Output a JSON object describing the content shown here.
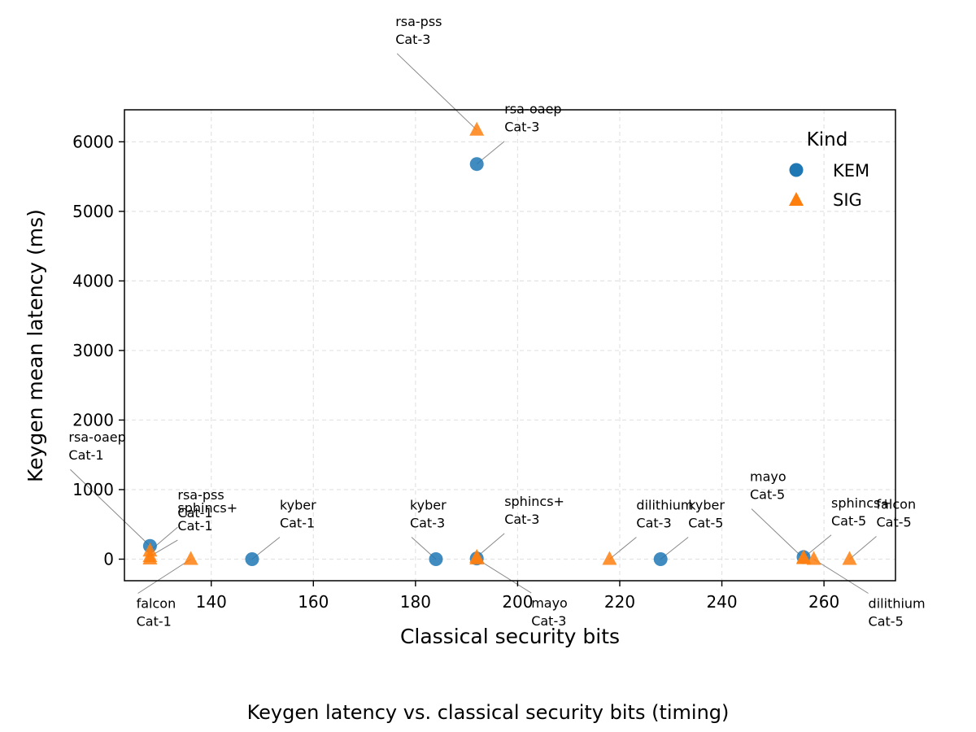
{
  "caption": "Keygen latency vs. classical security bits (timing)",
  "chart_data": {
    "type": "scatter",
    "title": "",
    "xlabel": "Classical security bits",
    "ylabel": "Keygen mean latency (ms)",
    "xlim": [
      123,
      274
    ],
    "ylim": [
      -310,
      6460
    ],
    "xticks": [
      140,
      160,
      180,
      200,
      220,
      240,
      260
    ],
    "yticks": [
      0,
      1000,
      2000,
      3000,
      4000,
      5000,
      6000
    ],
    "grid": true,
    "legend": {
      "title": "Kind",
      "placement": "top-right"
    },
    "series": [
      {
        "name": "KEM",
        "marker": "circle",
        "color": "#1f77b4",
        "points": [
          {
            "x": 128,
            "y": 190,
            "label": [
              "rsa-oaep",
              "Cat-1"
            ]
          },
          {
            "x": 148,
            "y": 0,
            "label": [
              "kyber",
              "Cat-1"
            ]
          },
          {
            "x": 184,
            "y": 0,
            "label": [
              "kyber",
              "Cat-3"
            ]
          },
          {
            "x": 192,
            "y": 5680,
            "label": [
              "rsa-oaep",
              "Cat-3"
            ]
          },
          {
            "x": 192,
            "y": 10
          },
          {
            "x": 228,
            "y": 0,
            "label": [
              "kyber",
              "Cat-5"
            ]
          },
          {
            "x": 256,
            "y": 30
          }
        ]
      },
      {
        "name": "SIG",
        "marker": "triangle",
        "color": "#ff7f0e",
        "points": [
          {
            "x": 128,
            "y": 120,
            "label": [
              "rsa-pss",
              "Cat-1"
            ]
          },
          {
            "x": 128,
            "y": 40,
            "label": [
              "sphincs+",
              "Cat-1"
            ]
          },
          {
            "x": 128,
            "y": 5
          },
          {
            "x": 136,
            "y": 0,
            "label": [
              "falcon",
              "Cat-1"
            ]
          },
          {
            "x": 192,
            "y": 6170,
            "label": [
              "rsa-pss",
              "Cat-3"
            ]
          },
          {
            "x": 192,
            "y": 30,
            "label": [
              "sphincs+",
              "Cat-3"
            ]
          },
          {
            "x": 192,
            "y": 5,
            "label": [
              "mayo",
              "Cat-3"
            ]
          },
          {
            "x": 218,
            "y": 0,
            "label": [
              "dilithium",
              "Cat-3"
            ]
          },
          {
            "x": 256,
            "y": 10,
            "label": [
              "mayo",
              "Cat-5"
            ]
          },
          {
            "x": 256,
            "y": 20,
            "label": [
              "sphincs+",
              "Cat-5"
            ]
          },
          {
            "x": 258,
            "y": 0,
            "label": [
              "dilithium",
              "Cat-5"
            ]
          },
          {
            "x": 265,
            "y": 0,
            "label": [
              "falcon",
              "Cat-5"
            ]
          }
        ]
      }
    ]
  }
}
